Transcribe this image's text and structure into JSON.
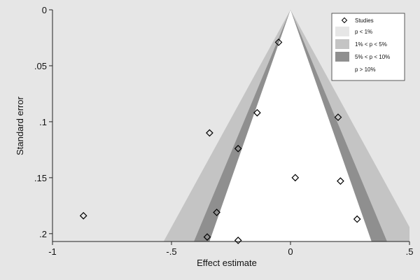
{
  "chart_data": {
    "type": "scatter",
    "subtype": "contour-enhanced funnel plot",
    "title": "",
    "xlabel": "Effect estimate",
    "ylabel": "Standard error",
    "xlim": [
      -1,
      0.5
    ],
    "ylim": [
      0,
      0.207
    ],
    "y_reversed": true,
    "grid": false,
    "legend_position": "top-right",
    "x_ticks": [
      {
        "value": -1,
        "label": "-1"
      },
      {
        "value": -0.5,
        "label": "-.5"
      },
      {
        "value": 0,
        "label": "0"
      },
      {
        "value": 0.5,
        "label": ".5"
      }
    ],
    "y_ticks": [
      {
        "value": 0,
        "label": "0"
      },
      {
        "value": 0.05,
        "label": ".05"
      },
      {
        "value": 0.1,
        "label": ".1"
      },
      {
        "value": 0.15,
        "label": ".15"
      },
      {
        "value": 0.2,
        "label": ".2"
      }
    ],
    "funnel_center": 0,
    "contours": [
      {
        "label": "p < 1%",
        "z": 2.576,
        "color": "#e6e6e6"
      },
      {
        "label": "1% < p < 5%",
        "z": 1.96,
        "color": "#c4c4c4"
      },
      {
        "label": "5% < p < 10%",
        "z": 1.645,
        "color": "#8f8f8f"
      },
      {
        "label": "p > 10%",
        "z": 0,
        "color": "#ffffff"
      }
    ],
    "series": [
      {
        "name": "Studies",
        "marker": "diamond",
        "points": [
          {
            "x": -0.05,
            "y": 0.029
          },
          {
            "x": -0.14,
            "y": 0.092
          },
          {
            "x": 0.2,
            "y": 0.096
          },
          {
            "x": -0.34,
            "y": 0.11
          },
          {
            "x": -0.22,
            "y": 0.124
          },
          {
            "x": 0.02,
            "y": 0.15
          },
          {
            "x": 0.21,
            "y": 0.153
          },
          {
            "x": -0.87,
            "y": 0.184
          },
          {
            "x": -0.31,
            "y": 0.181
          },
          {
            "x": 0.28,
            "y": 0.187
          },
          {
            "x": -0.35,
            "y": 0.203
          },
          {
            "x": -0.22,
            "y": 0.206
          }
        ]
      }
    ]
  }
}
